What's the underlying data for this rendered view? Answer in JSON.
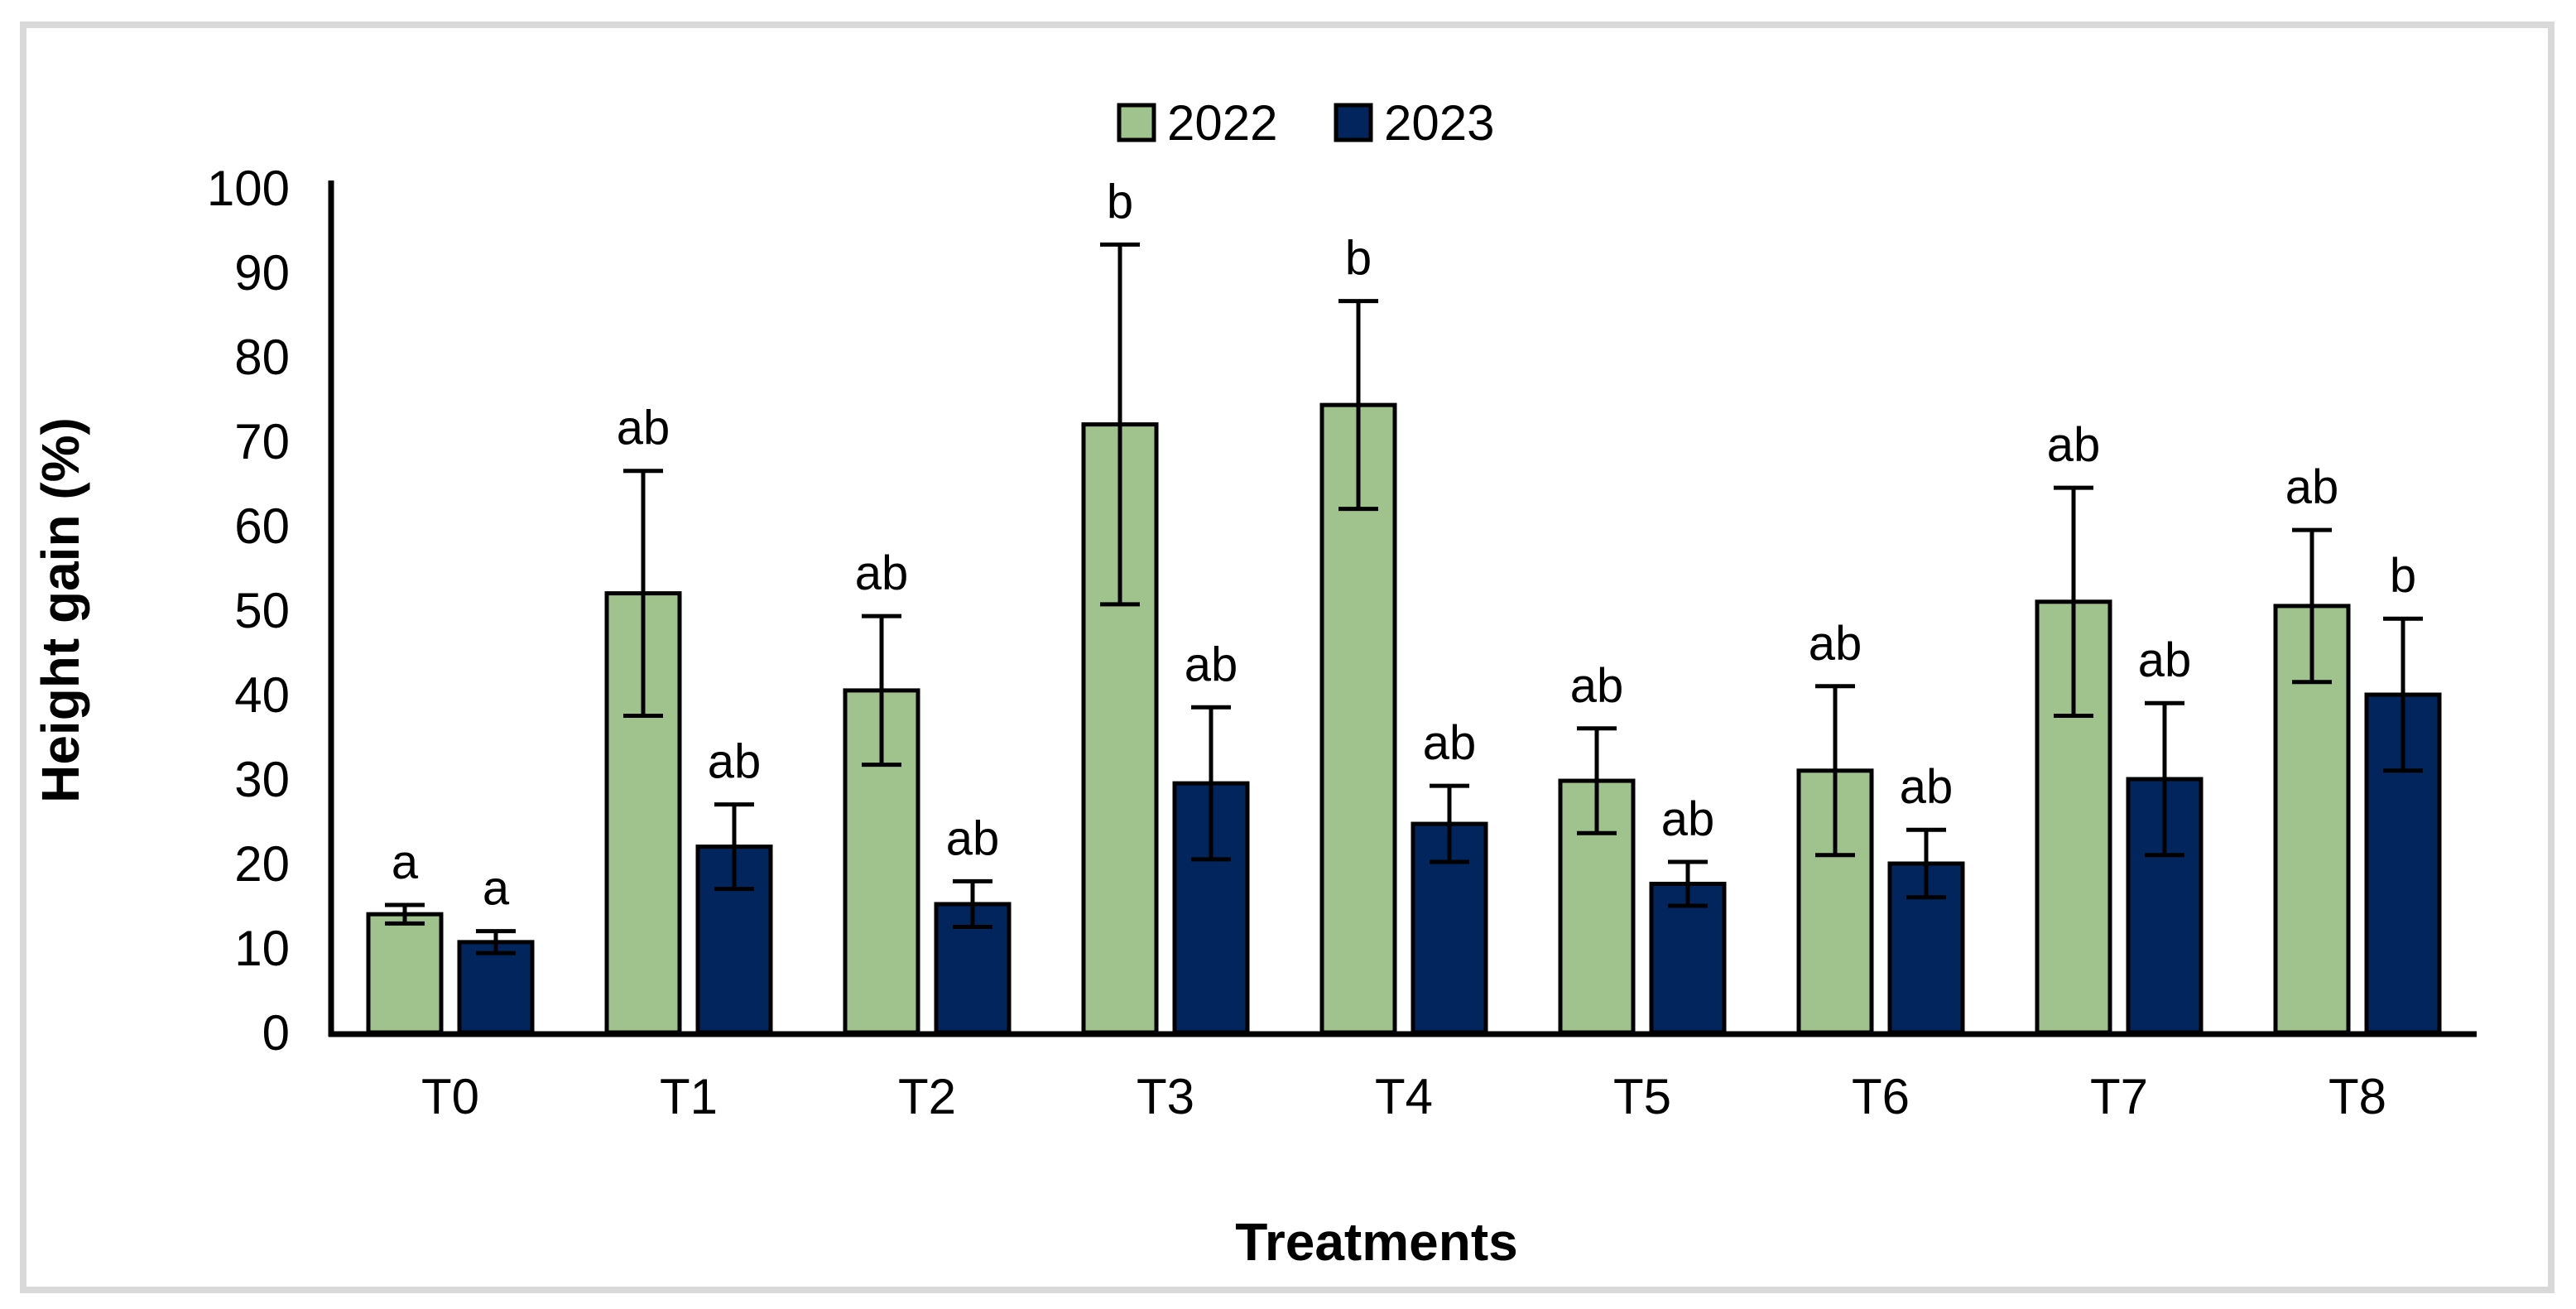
{
  "figure": {
    "background": "#ffffff",
    "frame_color": "#d9d9d9",
    "axis_color": "#000000",
    "error_bar_color": "#000000"
  },
  "legend": {
    "position": "top-center",
    "entries": [
      {
        "label": "2022",
        "swatch_color": "#a0c38e"
      },
      {
        "label": "2023",
        "swatch_color": "#03255e"
      }
    ]
  },
  "chart_data": {
    "type": "bar",
    "title": "",
    "xlabel": "Treatments",
    "ylabel": "Height gain (%)",
    "ylim": [
      0,
      100
    ],
    "ytick_step": 10,
    "yticks": [
      0,
      10,
      20,
      30,
      40,
      50,
      60,
      70,
      80,
      90,
      100
    ],
    "grid": false,
    "legend_position": "top",
    "categories": [
      "T0",
      "T1",
      "T2",
      "T3",
      "T4",
      "T5",
      "T6",
      "T7",
      "T8"
    ],
    "series": [
      {
        "name": "2022",
        "color": "#a0c38e",
        "outline": "#000000",
        "values": [
          14.0,
          52.0,
          40.5,
          72.0,
          74.3,
          29.8,
          31.0,
          51.0,
          50.5
        ],
        "errors": [
          1.1,
          14.5,
          8.8,
          21.3,
          12.3,
          6.2,
          10.0,
          13.5,
          9.0
        ],
        "letters": [
          "a",
          "ab",
          "ab",
          "b",
          "b",
          "ab",
          "ab",
          "ab",
          "ab"
        ]
      },
      {
        "name": "2023",
        "color": "#03255e",
        "outline": "#000000",
        "values": [
          10.7,
          22.0,
          15.2,
          29.5,
          24.7,
          17.6,
          20.0,
          30.0,
          40.0
        ],
        "errors": [
          1.3,
          5.0,
          2.7,
          9.0,
          4.5,
          2.6,
          4.0,
          9.0,
          9.0
        ],
        "letters": [
          "a",
          "ab",
          "ab",
          "ab",
          "ab",
          "ab",
          "ab",
          "ab",
          "b"
        ]
      }
    ]
  }
}
